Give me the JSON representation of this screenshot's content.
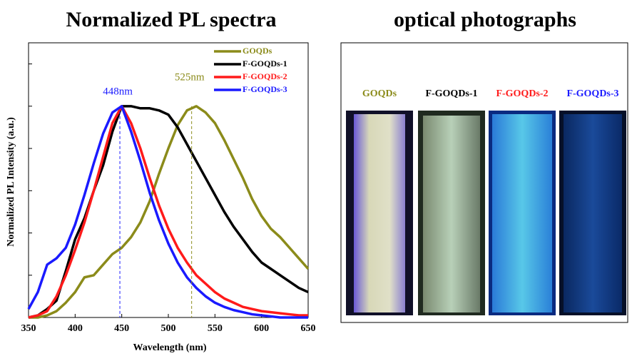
{
  "chart_data": {
    "type": "line",
    "title": "Normalized PL spectra",
    "x_label": "Wavelength (nm)",
    "y_label": "Normalized PL Intensity (a.u.)",
    "x": [
      350,
      360,
      370,
      380,
      390,
      400,
      410,
      420,
      430,
      440,
      450,
      460,
      470,
      480,
      490,
      500,
      510,
      520,
      530,
      540,
      550,
      560,
      570,
      580,
      590,
      600,
      610,
      620,
      630,
      640,
      650
    ],
    "series": [
      {
        "name": "GOQDs",
        "color": "#8b8b1a",
        "values": [
          0,
          0,
          0.01,
          0.03,
          0.07,
          0.12,
          0.19,
          0.2,
          0.25,
          0.3,
          0.33,
          0.38,
          0.45,
          0.55,
          0.68,
          0.8,
          0.91,
          0.98,
          1.0,
          0.97,
          0.92,
          0.84,
          0.75,
          0.66,
          0.56,
          0.48,
          0.42,
          0.38,
          0.33,
          0.28,
          0.23
        ]
      },
      {
        "name": "F-GOQDs-1",
        "color": "#000000",
        "values": [
          0,
          0.01,
          0.04,
          0.08,
          0.22,
          0.37,
          0.47,
          0.6,
          0.72,
          0.88,
          1.0,
          1.0,
          0.99,
          0.99,
          0.98,
          0.96,
          0.9,
          0.82,
          0.74,
          0.66,
          0.58,
          0.5,
          0.43,
          0.37,
          0.31,
          0.26,
          0.23,
          0.2,
          0.17,
          0.14,
          0.12
        ]
      },
      {
        "name": "F-GOQDs-2",
        "color": "#ff1a1a",
        "values": [
          0,
          0.01,
          0.03,
          0.1,
          0.2,
          0.32,
          0.45,
          0.6,
          0.76,
          0.92,
          1.0,
          0.92,
          0.8,
          0.66,
          0.53,
          0.42,
          0.33,
          0.26,
          0.2,
          0.16,
          0.12,
          0.09,
          0.07,
          0.05,
          0.04,
          0.03,
          0.025,
          0.02,
          0.015,
          0.01,
          0.01
        ]
      },
      {
        "name": "F-GOQDs-3",
        "color": "#1a1aff",
        "values": [
          0.04,
          0.12,
          0.25,
          0.28,
          0.33,
          0.44,
          0.58,
          0.73,
          0.87,
          0.97,
          1.0,
          0.88,
          0.74,
          0.59,
          0.46,
          0.35,
          0.26,
          0.19,
          0.14,
          0.1,
          0.07,
          0.05,
          0.035,
          0.025,
          0.015,
          0.01,
          0.005,
          0,
          0,
          0,
          0
        ]
      }
    ],
    "xlim": [
      350,
      650
    ],
    "xticks": [
      350,
      400,
      450,
      500,
      550,
      600,
      650
    ],
    "ylim": [
      0,
      1.3
    ],
    "yticks": [
      0,
      0.2,
      0.4,
      0.6,
      0.8,
      1.0,
      1.2
    ],
    "legend": "upper right",
    "annotations": [
      {
        "text": "448nm",
        "x": 448,
        "color": "#1a1aff"
      },
      {
        "text": "525nm",
        "x": 525,
        "color": "#8b8b1a"
      }
    ]
  },
  "photographs": {
    "title": "optical photographs",
    "labels": [
      "GOQDs",
      "F-GOQDs-1",
      "F-GOQDs-2",
      "F-GOQDs-3"
    ]
  }
}
